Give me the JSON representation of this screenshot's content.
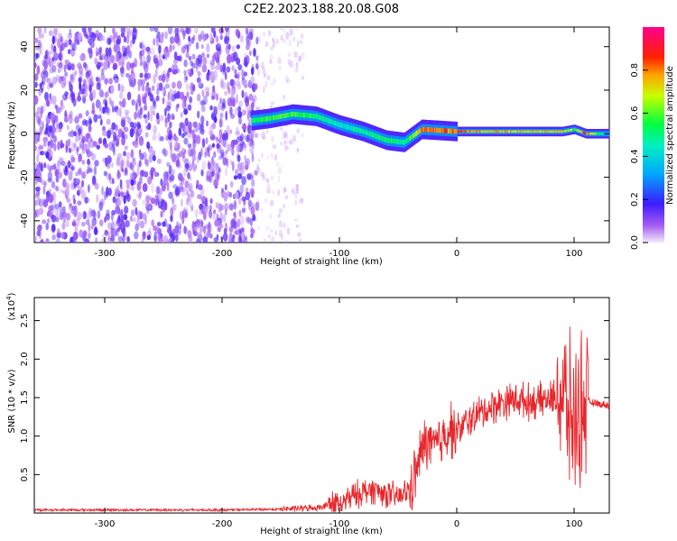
{
  "title": "C2E2.2023.188.20.08.G08",
  "chart_data": [
    {
      "type": "heatmap",
      "xlabel": "Height of straight line (km)",
      "ylabel": "Frequency (Hz)",
      "xlim": [
        -360,
        130
      ],
      "ylim": [
        -50,
        49
      ],
      "xticks": [
        -300,
        -200,
        -100,
        0,
        100
      ],
      "yticks": [
        -40,
        -20,
        0,
        20,
        40
      ],
      "colorbar": {
        "label": "Normalized spectral amplitude",
        "range": [
          0.0,
          1.0
        ],
        "ticks": [
          0.0,
          0.2,
          0.4,
          0.6,
          0.8
        ],
        "tick_labels": [
          "0.0",
          "0.2",
          "0.4",
          "0.6",
          "0.8"
        ],
        "colormap": "rainbow (white/purple → blue → cyan → green → yellow → red → magenta)"
      },
      "ridge": {
        "x": [
          -175,
          -160,
          -140,
          -120,
          -100,
          -80,
          -60,
          -45,
          -30,
          0,
          50,
          90,
          100,
          110,
          130
        ],
        "frequency": [
          6,
          7,
          9,
          8,
          4,
          1,
          -3,
          -4,
          2,
          1,
          1,
          1,
          2,
          0,
          0
        ],
        "peak_amplitude": [
          0.55,
          0.6,
          0.6,
          0.55,
          0.45,
          0.5,
          0.55,
          0.5,
          0.85,
          0.85,
          0.75,
          0.8,
          0.6,
          0.9,
          0.3
        ]
      }
    },
    {
      "type": "line",
      "xlabel": "Height of straight line (km)",
      "ylabel": "SNR (10 * v/v)",
      "y_multiplier_label": "(x10",
      "y_multiplier_exp": "4",
      "xlim": [
        -360,
        130
      ],
      "ylim": [
        0,
        2.8
      ],
      "xticks": [
        -300,
        -200,
        -100,
        0,
        100
      ],
      "yticks": [
        0.5,
        1.0,
        1.5,
        2.0,
        2.5
      ],
      "ytick_labels": [
        "0.5",
        "1.0",
        "1.5",
        "2.0",
        "2.5"
      ],
      "color": "#e8262b",
      "series": [
        {
          "x": [
            -360,
            -300,
            -200,
            -150,
            -120,
            -100,
            -90,
            -80,
            -70,
            -60,
            -50,
            -40,
            -35,
            -30,
            -25,
            -20,
            -15,
            -10,
            -5,
            0,
            10,
            20,
            30,
            40,
            50,
            60,
            70,
            80,
            90,
            95,
            100,
            105,
            110,
            120,
            130
          ],
          "values": [
            0.04,
            0.04,
            0.04,
            0.05,
            0.07,
            0.13,
            0.2,
            0.28,
            0.3,
            0.25,
            0.2,
            0.3,
            0.5,
            0.8,
            0.95,
            0.85,
            0.9,
            1.05,
            1.1,
            1.05,
            1.2,
            1.3,
            1.38,
            1.45,
            1.48,
            1.45,
            1.45,
            1.48,
            1.55,
            1.3,
            1.2,
            1.35,
            1.45,
            1.42,
            1.4
          ]
        }
      ]
    }
  ]
}
